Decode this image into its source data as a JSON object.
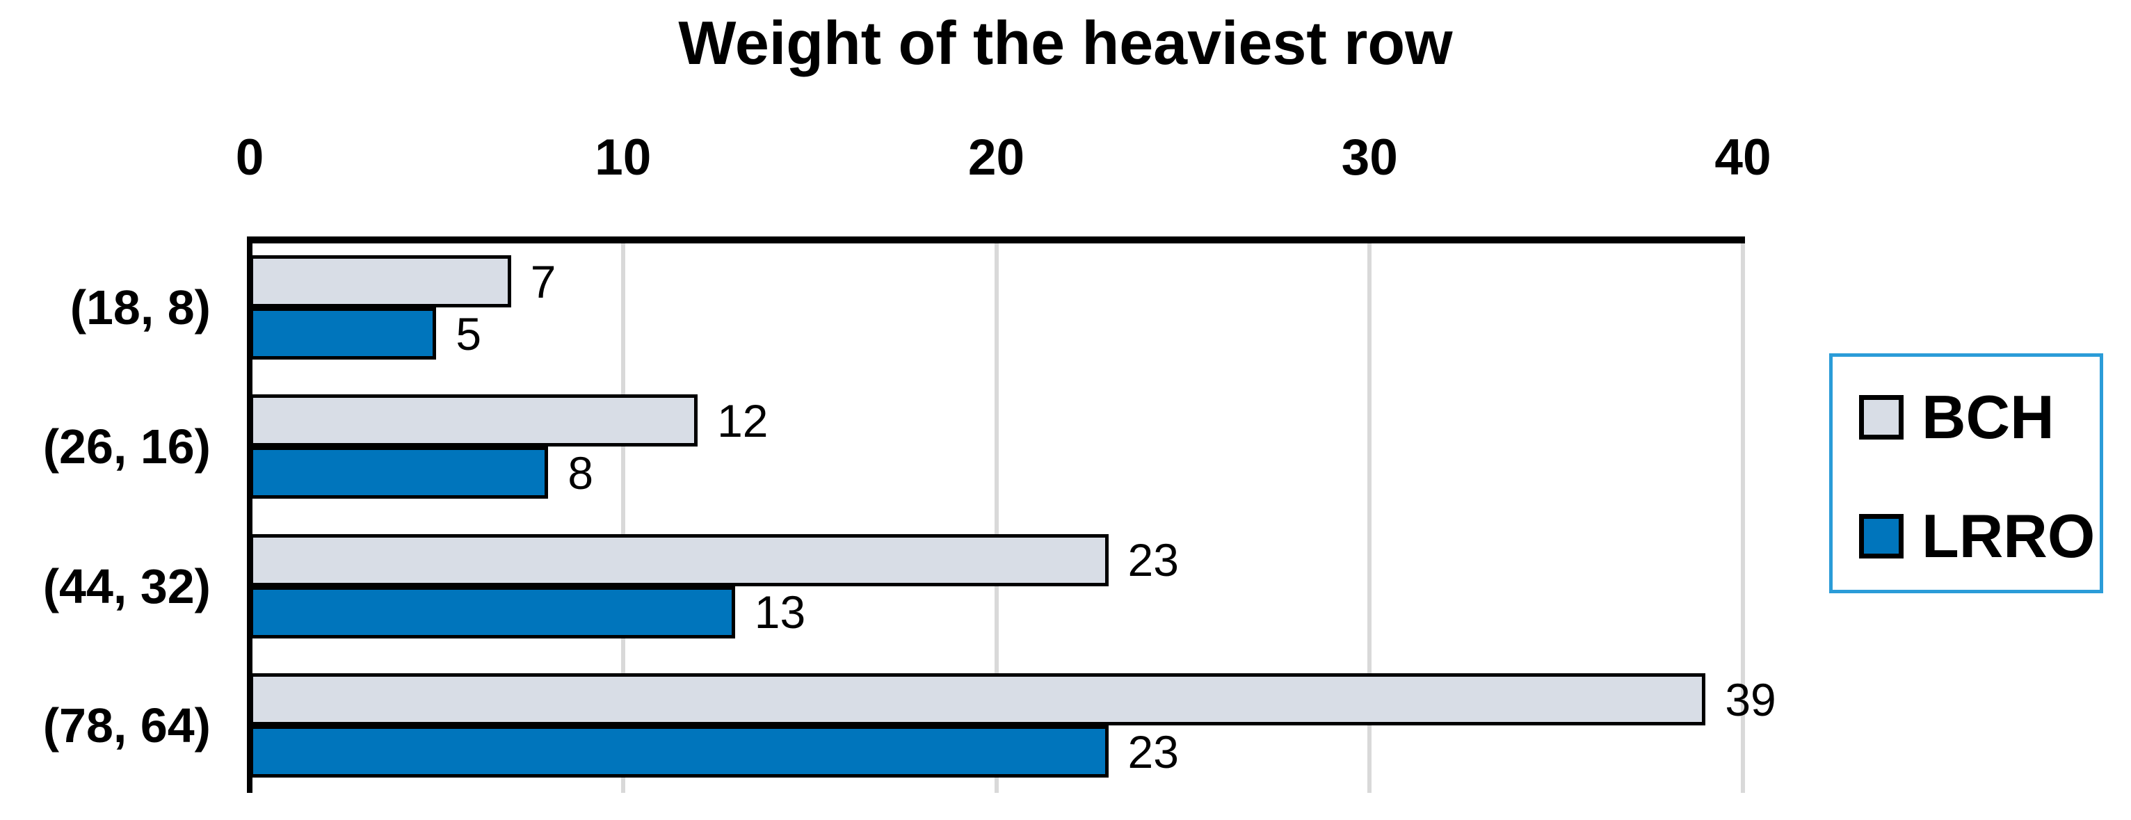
{
  "title": "Weight of the heaviest row",
  "chart_data": {
    "type": "bar",
    "orientation": "horizontal",
    "title": "Weight of the heaviest row",
    "categories": [
      "(18, 8)",
      "(26, 16)",
      "(44, 32)",
      "(78, 64)"
    ],
    "series": [
      {
        "name": "BCH",
        "color": "#D8DDE6",
        "values": [
          7,
          12,
          23,
          39
        ]
      },
      {
        "name": "LRRO",
        "color": "#0075BC",
        "values": [
          5,
          8,
          13,
          23
        ]
      }
    ],
    "data_labels": {
      "BCH": [
        "7",
        "12",
        "23",
        "39"
      ],
      "LRRO": [
        "5",
        "8",
        "13",
        "23"
      ]
    },
    "xlim": [
      0,
      40
    ],
    "x_ticks": [
      "0",
      "10",
      "20",
      "30",
      "40"
    ],
    "grid": true,
    "legend_position": "right",
    "legend_entries": [
      "BCH",
      "LRRO"
    ],
    "colors": {
      "bar_border": "#000000",
      "gridline": "#D9D9D9",
      "axis_line": "#000000",
      "legend_border": "#2B9CD8",
      "text": "#000000",
      "background": "#ffffff"
    }
  }
}
